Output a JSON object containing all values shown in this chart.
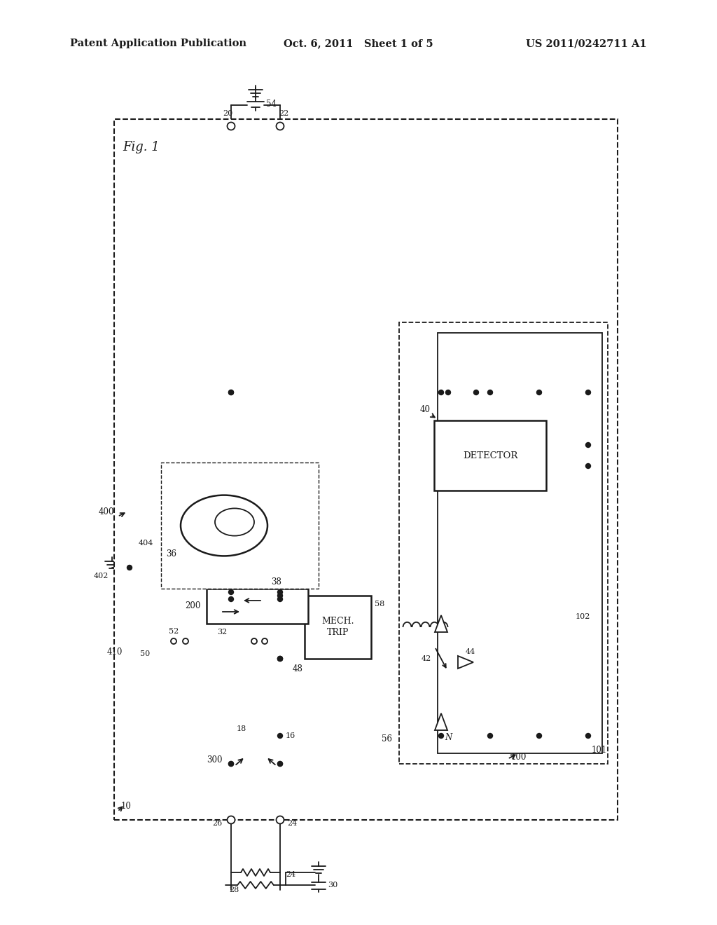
{
  "bg_color": "#ffffff",
  "lc": "#1a1a1a",
  "header_left": "Patent Application Publication",
  "header_center": "Oct. 6, 2011   Sheet 1 of 5",
  "header_right": "US 2011/0242711 A1",
  "fig_label": "Fig. 1",
  "header_fontsize": 10.5,
  "label_fontsize": 8.5
}
